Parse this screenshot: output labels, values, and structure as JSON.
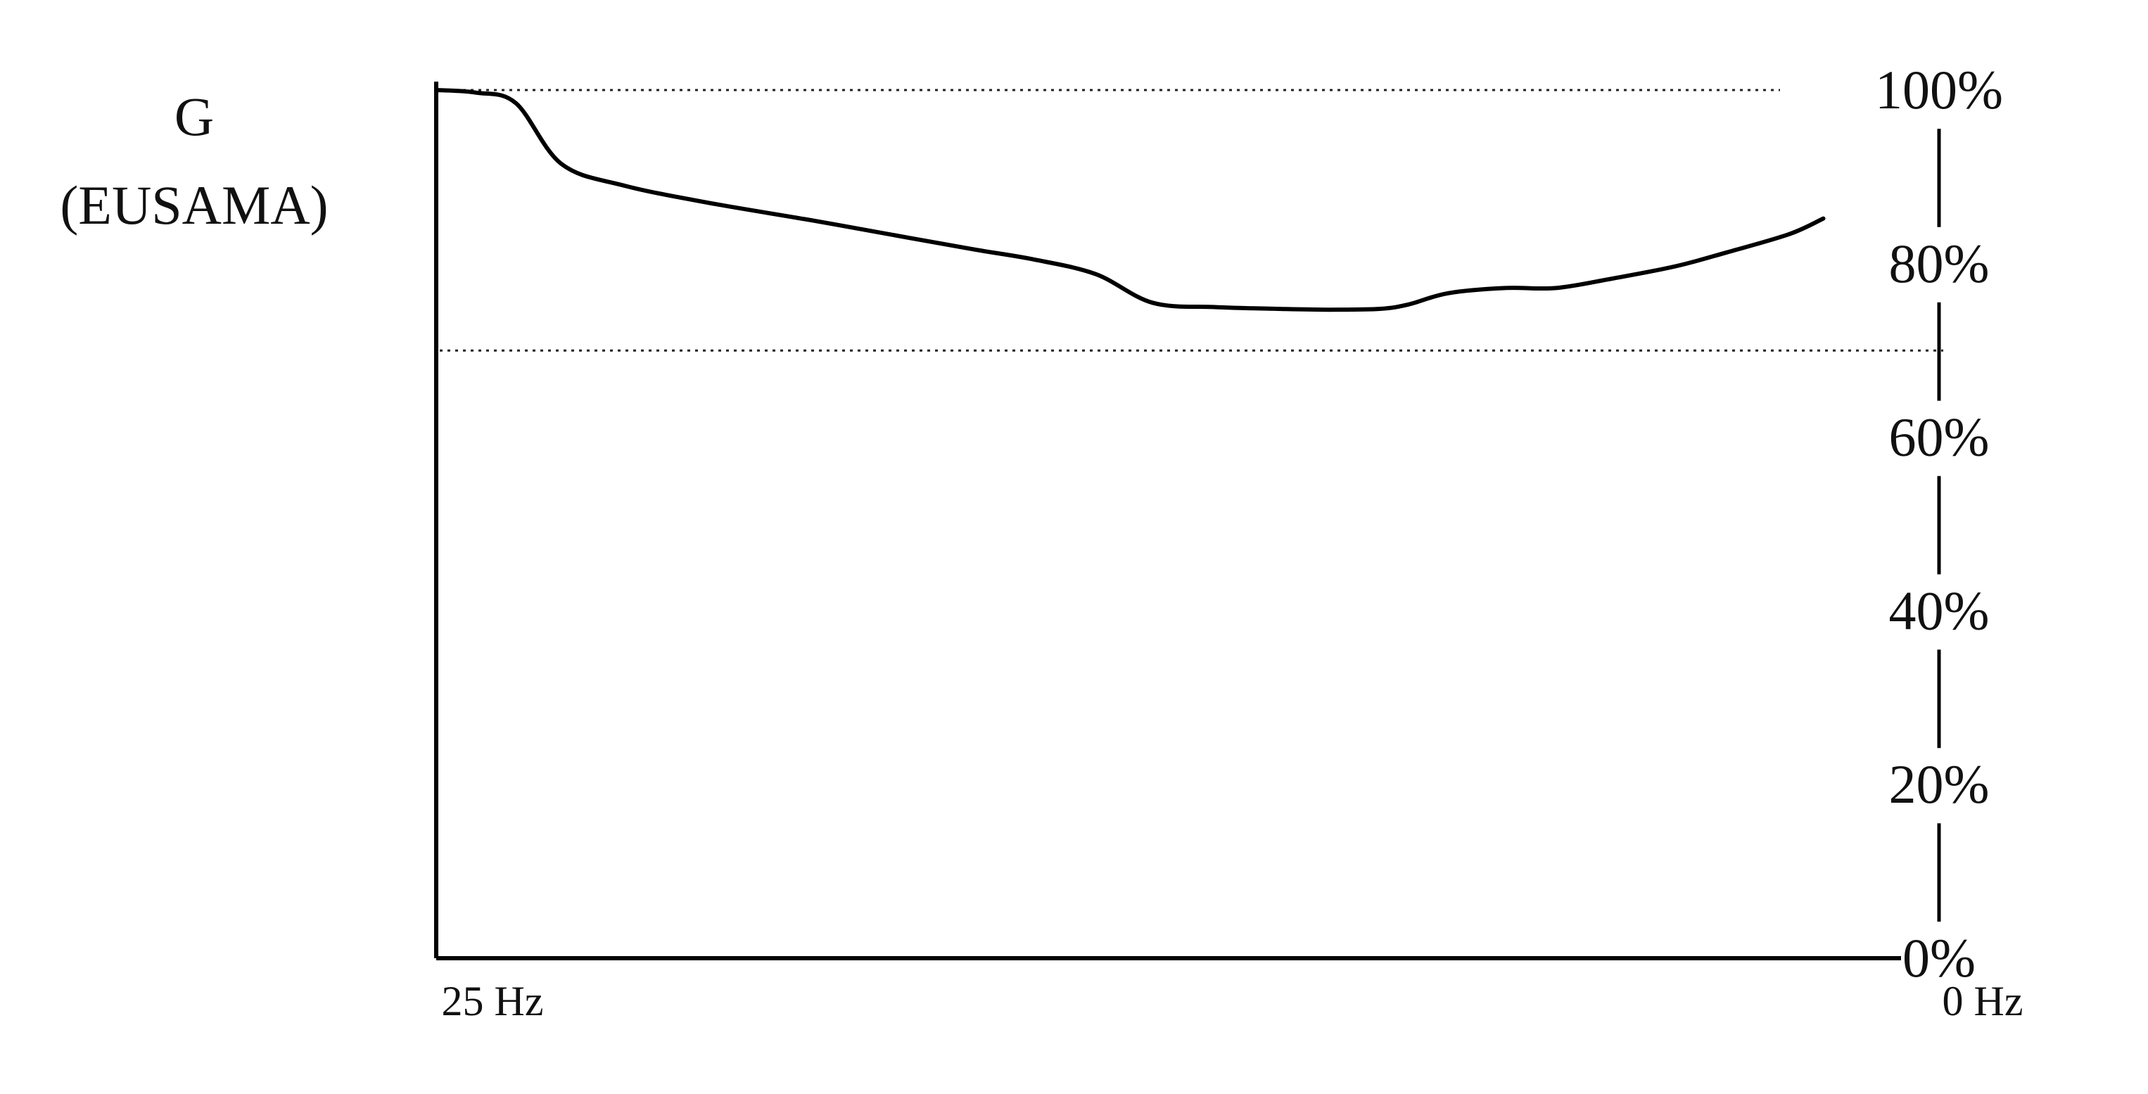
{
  "chart_data": {
    "type": "line",
    "ylabel_lines": [
      "G",
      "(EUSAMA)"
    ],
    "y_ticks": [
      "100%",
      "80%",
      "60%",
      "40%",
      "20%",
      "0%"
    ],
    "y_tick_values": [
      100,
      80,
      60,
      40,
      20,
      0
    ],
    "ylim": [
      0,
      100
    ],
    "x_tick_labels": [
      "25 Hz",
      "0 Hz"
    ],
    "xlim": [
      25,
      0
    ],
    "x_direction": "decreasing left to right",
    "y_axis_position": "right",
    "reference_lines": [
      100,
      70
    ],
    "series": [
      {
        "x": [
          25,
          24.3,
          23.6,
          22.8,
          21.7,
          20.2,
          18.4,
          16.7,
          15.5,
          14.5,
          13.4,
          12.4,
          11.3,
          10.2,
          9.3,
          8.4,
          7.9,
          7.2,
          6.2,
          5.3,
          4.3,
          3.2,
          2.3,
          1.2,
          0.6
        ],
        "y": [
          100,
          99.7,
          98.5,
          91.5,
          89,
          87,
          85,
          83,
          81.6,
          80.5,
          78.8,
          75.5,
          75,
          74.8,
          74.7,
          74.8,
          75.3,
          76.6,
          77.2,
          77.2,
          78.3,
          79.7,
          81.3,
          83.4,
          85.2
        ]
      }
    ]
  }
}
